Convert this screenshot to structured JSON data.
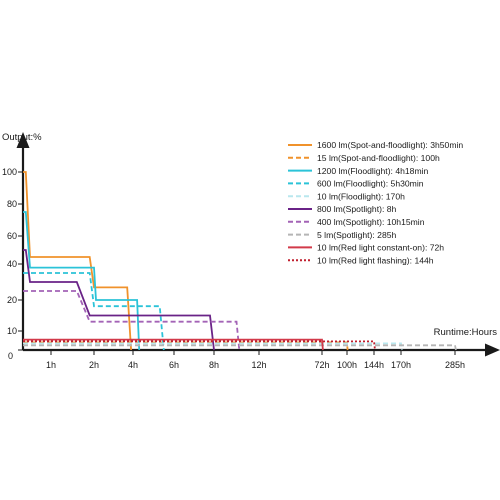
{
  "chart_data": {
    "type": "line",
    "title": "",
    "ylabel": "Output:%",
    "xlabel": "Runtime:Hours",
    "ylim": [
      0,
      110
    ],
    "y_ticks": [
      "0",
      "10",
      "20",
      "40",
      "60",
      "80",
      "100"
    ],
    "x_ticks": [
      "1h",
      "2h",
      "4h",
      "6h",
      "8h",
      "12h",
      "72h",
      "100h",
      "144h",
      "170h",
      "285h"
    ],
    "x_scale": "non-linear (compressed beyond 12h)",
    "legend_position": "top-right",
    "grid": false,
    "series": [
      {
        "name": "1600 lm(Spot-and-floodlight): 3h50min",
        "color": "#F0922B",
        "dash": "solid",
        "points": [
          [
            0,
            100
          ],
          [
            0.1,
            100
          ],
          [
            0.25,
            45
          ],
          [
            1.9,
            45
          ],
          [
            2.0,
            27
          ],
          [
            3.7,
            27
          ],
          [
            3.9,
            0
          ]
        ]
      },
      {
        "name": "15 lm(Spot-and-floodlight): 100h",
        "color": "#F0922B",
        "dash": "dashed",
        "points": [
          [
            0,
            4
          ],
          [
            100,
            4
          ],
          [
            101,
            0
          ]
        ]
      },
      {
        "name": "1200 lm(Floodlight): 4h18min",
        "color": "#2BC3D8",
        "dash": "solid",
        "points": [
          [
            0,
            75
          ],
          [
            0.1,
            75
          ],
          [
            0.25,
            38
          ],
          [
            2.0,
            38
          ],
          [
            2.1,
            20
          ],
          [
            4.2,
            20
          ],
          [
            4.3,
            0
          ]
        ]
      },
      {
        "name": "600 lm(Floodlight): 5h30min",
        "color": "#2BC3D8",
        "dash": "dashed",
        "points": [
          [
            0,
            35
          ],
          [
            0.25,
            35
          ],
          [
            1.9,
            35
          ],
          [
            2.0,
            18
          ],
          [
            5.3,
            18
          ],
          [
            5.5,
            0
          ]
        ]
      },
      {
        "name": "10 lm(Floodlight): 170h",
        "color": "#B9E7EE",
        "dash": "dashed",
        "points": [
          [
            0,
            3.5
          ],
          [
            170,
            3.5
          ],
          [
            172,
            0
          ]
        ]
      },
      {
        "name": "800 lm(Spotlight): 8h",
        "color": "#6A2387",
        "dash": "solid",
        "points": [
          [
            0,
            50
          ],
          [
            0.1,
            50
          ],
          [
            0.25,
            30
          ],
          [
            1.6,
            30
          ],
          [
            1.9,
            15
          ],
          [
            7.8,
            15
          ],
          [
            8.0,
            0
          ]
        ]
      },
      {
        "name": "400 lm(Spotlight): 10h15min",
        "color": "#A363B6",
        "dash": "dashed",
        "points": [
          [
            0,
            25
          ],
          [
            1.6,
            25
          ],
          [
            1.9,
            13
          ],
          [
            10.0,
            13
          ],
          [
            10.25,
            0
          ]
        ]
      },
      {
        "name": "5 lm(Spotlight): 285h",
        "color": "#B5B5B5",
        "dash": "dashed",
        "points": [
          [
            0,
            2.5
          ],
          [
            285,
            2.5
          ],
          [
            287,
            0
          ]
        ]
      },
      {
        "name": "10 lm(Red light constant-on): 72h",
        "color": "#D23A4A",
        "dash": "solid",
        "points": [
          [
            0,
            5.5
          ],
          [
            72,
            5.5
          ],
          [
            73,
            0
          ]
        ]
      },
      {
        "name": "10 lm(Red light flashing): 144h",
        "color": "#C01F2E",
        "dash": "dotted",
        "points": [
          [
            0,
            4.5
          ],
          [
            144,
            4.5
          ],
          [
            145,
            0
          ]
        ]
      }
    ]
  }
}
